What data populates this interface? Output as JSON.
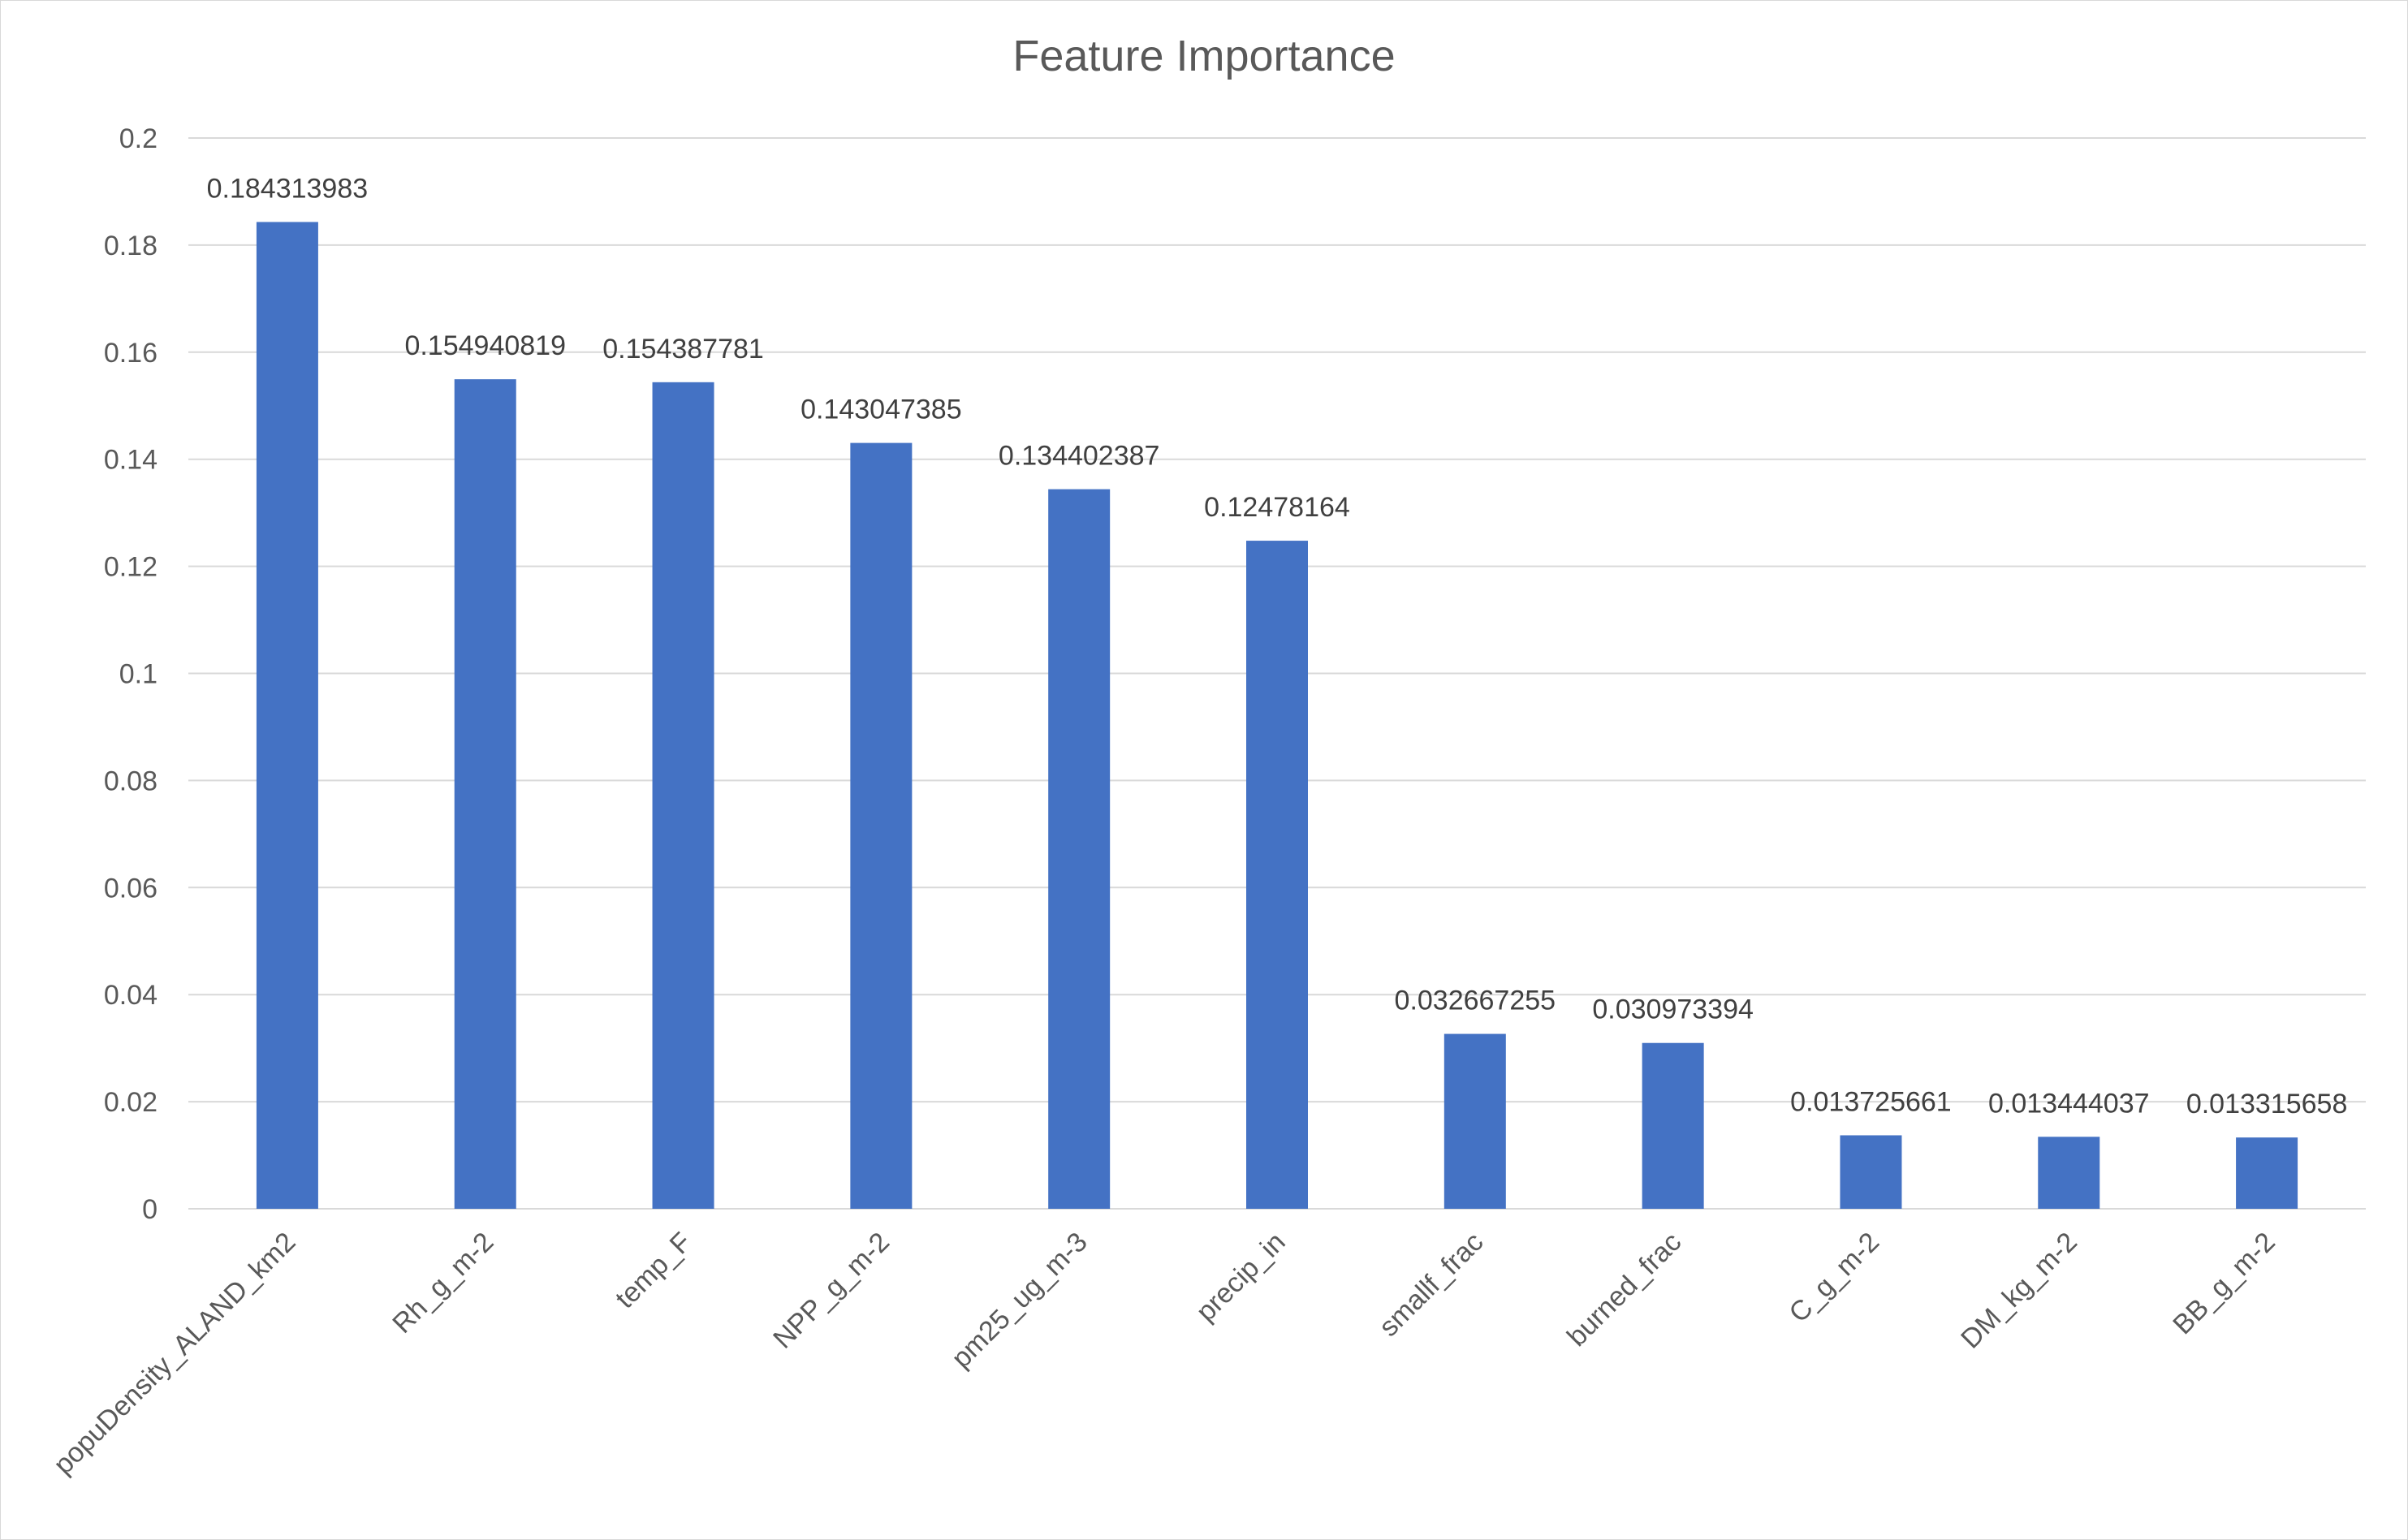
{
  "chart_data": {
    "type": "bar",
    "title": "Feature Importance",
    "xlabel": "",
    "ylabel": "",
    "categories": [
      "popuDensity_ALAND_km2",
      "Rh_g_m-2",
      "temp_F",
      "NPP_g_m-2",
      "pm25_ug_m-3",
      "precip_in",
      "smallf_frac",
      "burned_frac",
      "C_g_m-2",
      "DM_kg_m-2",
      "BB_g_m-2"
    ],
    "values": [
      0.184313983,
      0.154940819,
      0.154387781,
      0.143047385,
      0.134402387,
      0.12478164,
      0.032667255,
      0.030973394,
      0.013725661,
      0.013444037,
      0.013315658
    ],
    "data_labels": [
      "0.184313983",
      "0.154940819",
      "0.154387781",
      "0.143047385",
      "0.134402387",
      "0.12478164",
      "0.032667255",
      "0.030973394",
      "0.013725661",
      "0.013444037",
      "0.013315658"
    ],
    "yticks": [
      "0",
      "0.02",
      "0.04",
      "0.06",
      "0.08",
      "0.1",
      "0.12",
      "0.14",
      "0.16",
      "0.18",
      "0.2"
    ],
    "ylim": [
      0,
      0.2
    ],
    "grid": true,
    "legend": "none",
    "bar_color": "#4472c4"
  }
}
